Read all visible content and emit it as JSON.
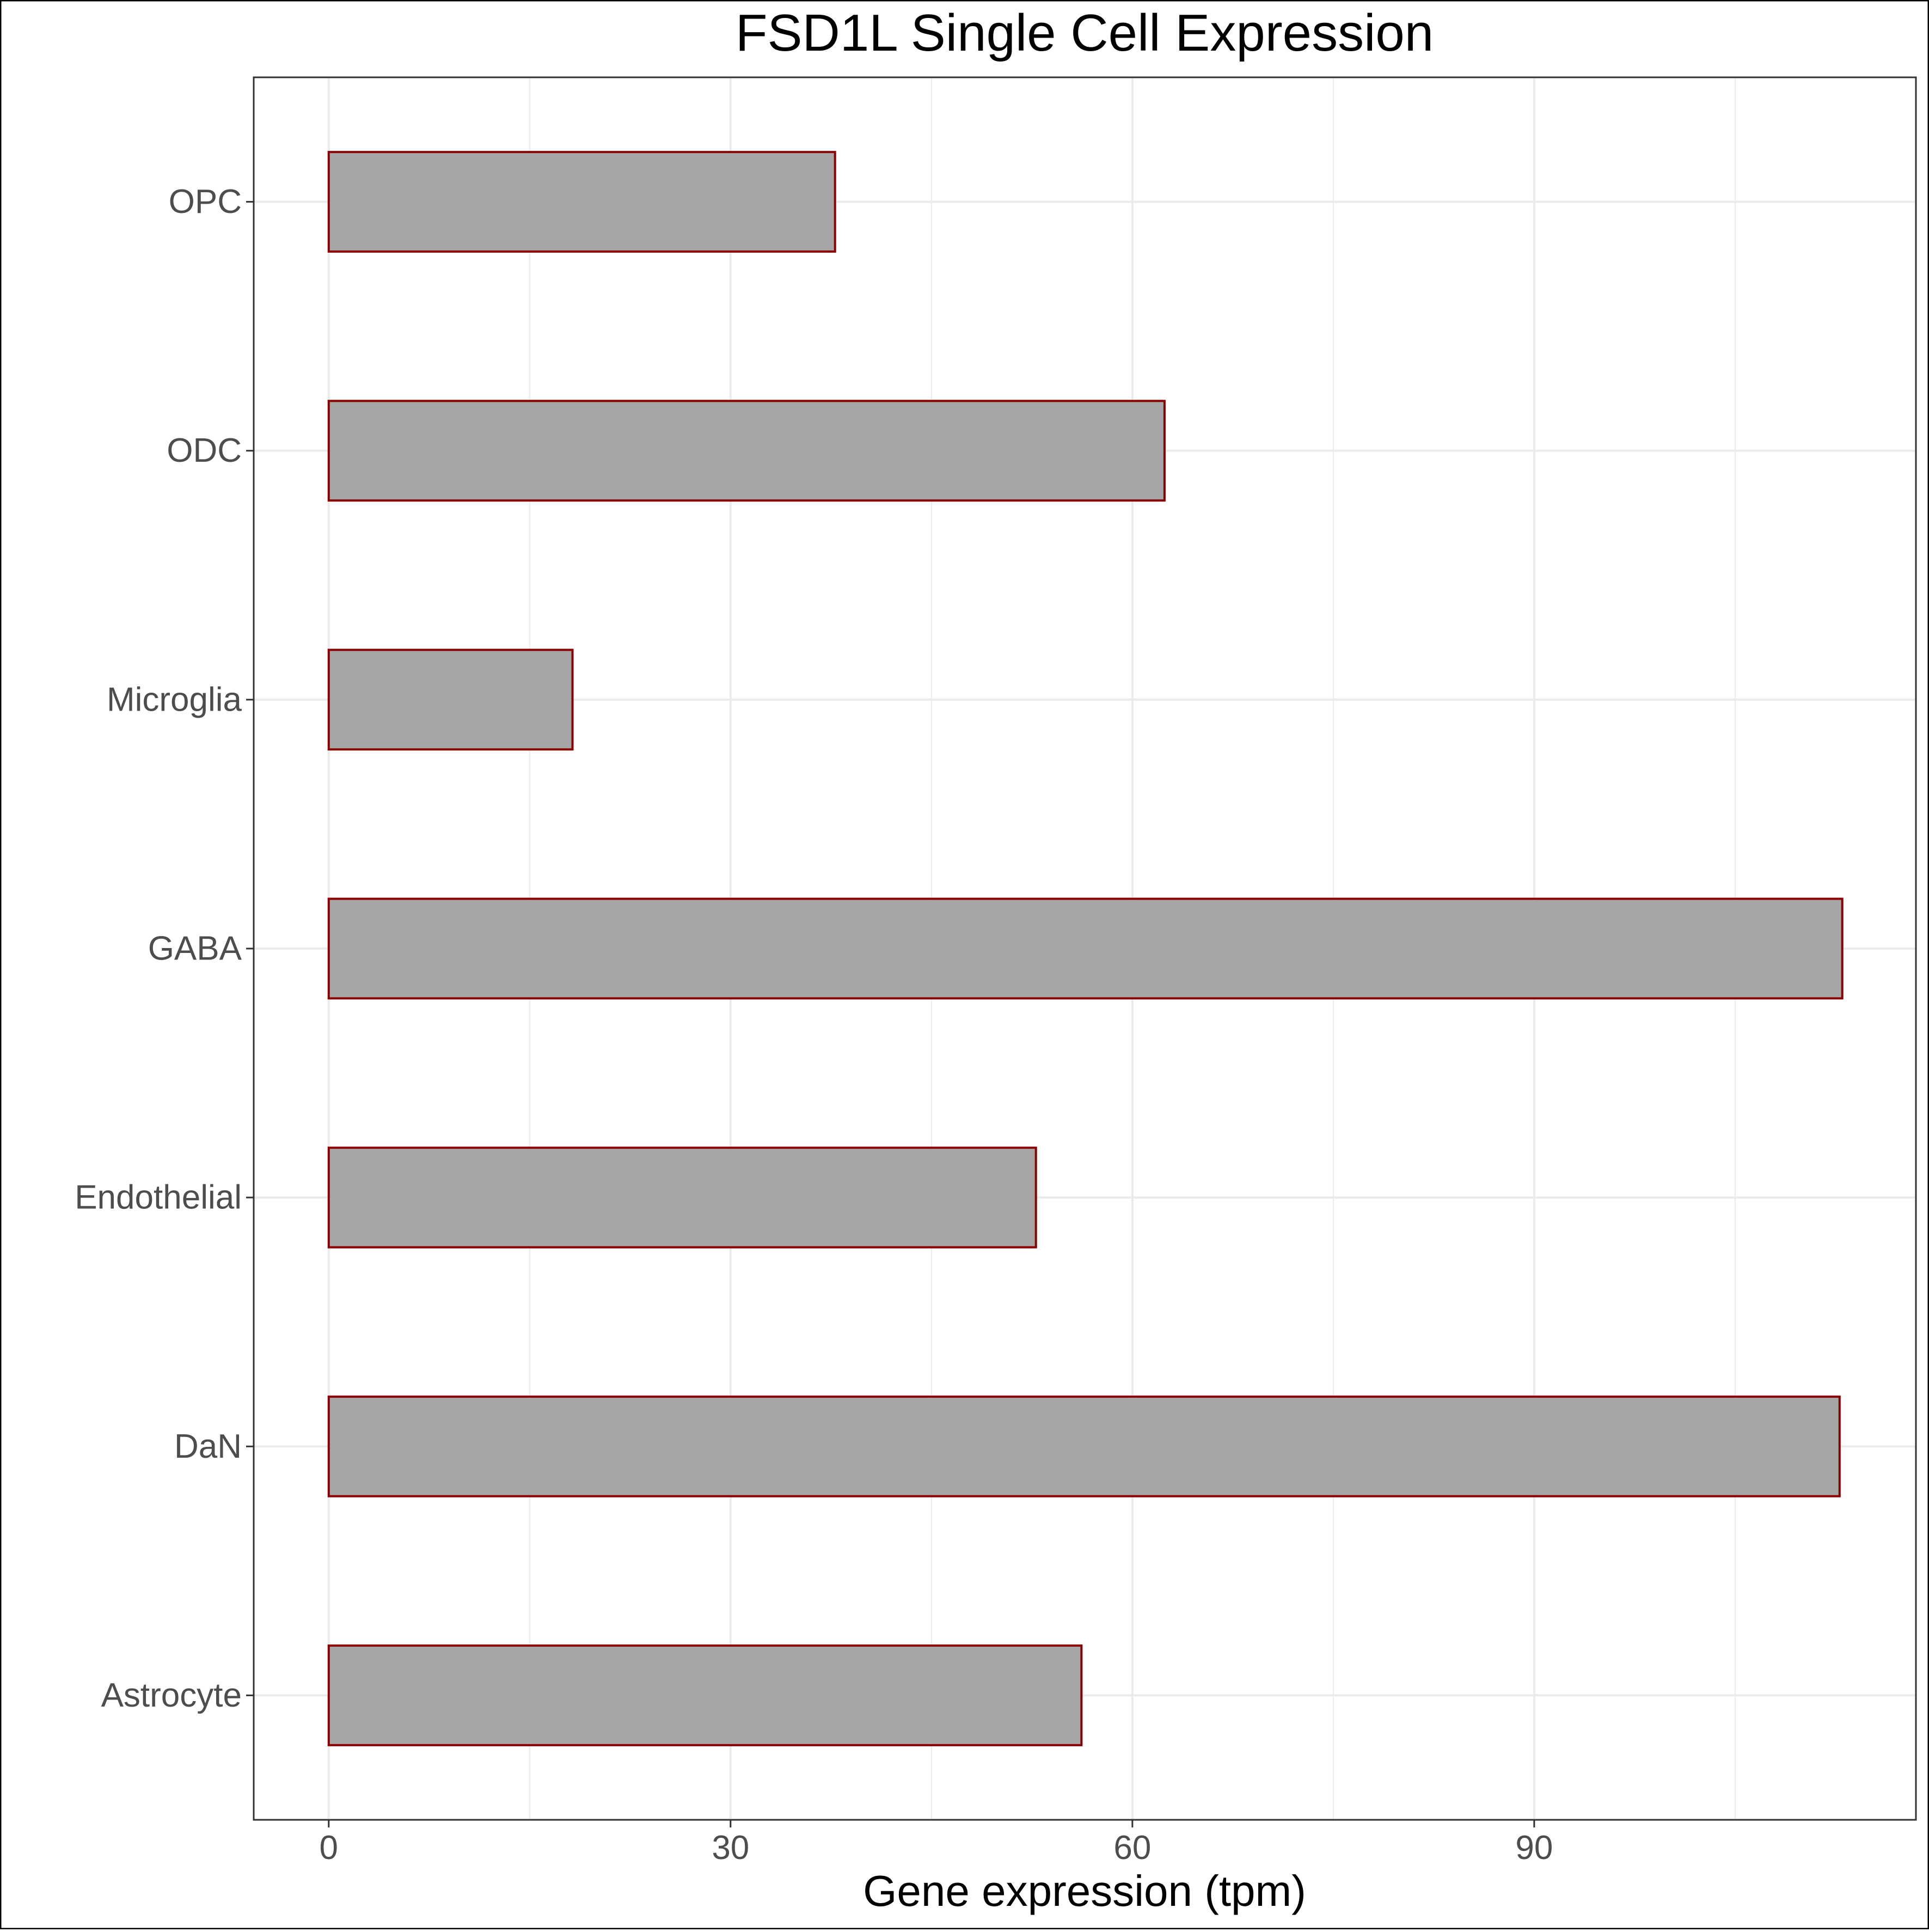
{
  "chart_data": {
    "type": "bar",
    "orientation": "horizontal",
    "title": "FSD1L Single Cell Expression",
    "xlabel": "Gene expression (tpm)",
    "ylabel": "",
    "categories": [
      "Astrocyte",
      "DaN",
      "Endothelial",
      "GABA",
      "Microglia",
      "ODC",
      "OPC"
    ],
    "values": [
      56.2,
      112.8,
      52.8,
      113.0,
      18.2,
      62.4,
      37.8
    ],
    "xlim": [
      -5.6,
      118.5
    ],
    "xticks": [
      0,
      30,
      60,
      90
    ],
    "grid": true,
    "legend": "none",
    "colors": {
      "bar_fill": "#a6a6a6",
      "bar_stroke": "#8b0000",
      "grid": "#ebebeb",
      "panel_border": "#333333",
      "tick_text": "#4d4d4d"
    }
  }
}
